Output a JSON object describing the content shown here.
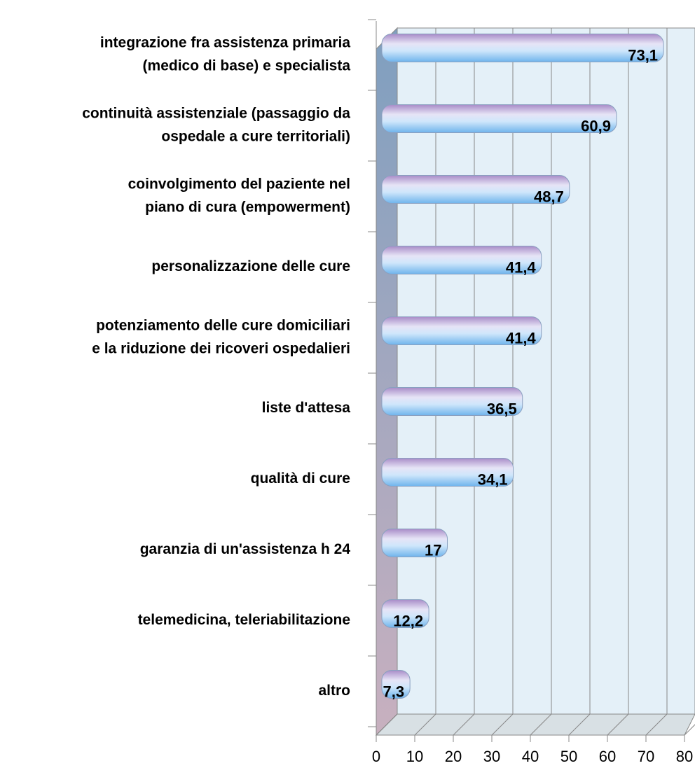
{
  "chart_data": {
    "type": "bar",
    "orientation": "horizontal",
    "categories": [
      [
        "integrazione fra assistenza primaria",
        "(medico di base) e specialista"
      ],
      [
        "continuità assistenziale (passaggio da",
        "ospedale a cure territoriali)"
      ],
      [
        "coinvolgimento del paziente nel",
        "piano di cura (empowerment)"
      ],
      [
        "personalizzazione delle cure"
      ],
      [
        "potenziamento delle cure domiciliari",
        "e la riduzione dei ricoveri ospedalieri"
      ],
      [
        "liste d'attesa"
      ],
      [
        "qualità di cure"
      ],
      [
        "garanzia di un'assistenza h 24"
      ],
      [
        "telemedicina, teleriabilitazione"
      ],
      [
        "altro"
      ]
    ],
    "values": [
      73.1,
      60.9,
      48.7,
      41.4,
      41.4,
      36.5,
      34.1,
      17,
      12.2,
      7.3
    ],
    "value_labels": [
      "73,1",
      "60,9",
      "48,7",
      "41,4",
      "41,4",
      "36,5",
      "34,1",
      "17",
      "12,2",
      "7,3"
    ],
    "xlim": [
      0,
      80
    ],
    "xticks": [
      0,
      10,
      20,
      30,
      40,
      50,
      60,
      70,
      80
    ],
    "grid": true
  }
}
